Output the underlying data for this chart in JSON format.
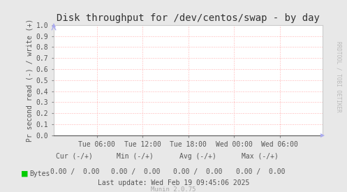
{
  "title": "Disk throughput for /dev/centos/swap - by day",
  "ylabel": "Pr second read (-) / write (+)",
  "background_color": "#e8e8e8",
  "plot_bg_color": "#ffffff",
  "grid_color": "#ffb0b0",
  "border_color": "#cccccc",
  "ylim": [
    0.0,
    1.0
  ],
  "yticks": [
    0.0,
    0.1,
    0.2,
    0.3,
    0.4,
    0.5,
    0.6,
    0.7,
    0.8,
    0.9,
    1.0
  ],
  "xtick_labels": [
    "Tue 06:00",
    "Tue 12:00",
    "Tue 18:00",
    "Wed 00:00",
    "Wed 06:00"
  ],
  "xtick_positions": [
    0.16,
    0.33,
    0.5,
    0.67,
    0.84
  ],
  "legend_label": "Bytes",
  "legend_color": "#00cc00",
  "last_update": "Last update: Wed Feb 19 09:45:06 2025",
  "munin_version": "Munin 2.0.75",
  "watermark": "RRDTOOL / TOBI OETIKER",
  "title_fontsize": 10,
  "axis_fontsize": 7,
  "footer_fontsize": 7,
  "watermark_fontsize": 5.5,
  "ylabel_fontsize": 7
}
